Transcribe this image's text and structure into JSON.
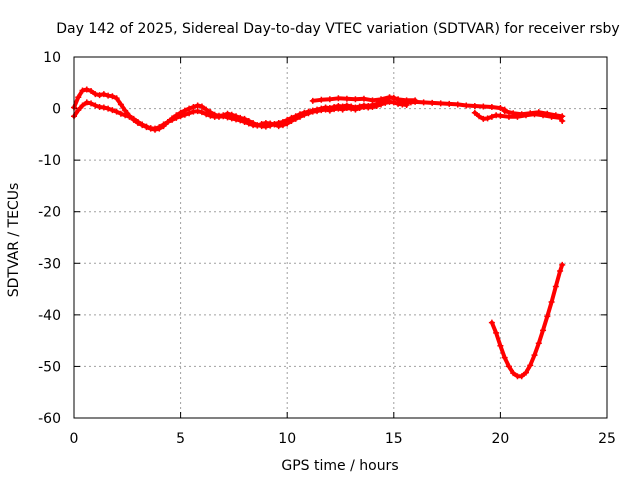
{
  "chart_data": {
    "type": "scatter",
    "title": "Day 142 of 2025, Sidereal Day-to-day VTEC variation (SDTVAR) for receiver rsby",
    "xlabel": "GPS time / hours",
    "ylabel": "SDTVAR / TECUs",
    "xlim": [
      0,
      25
    ],
    "ylim": [
      -60,
      10
    ],
    "xticks": [
      0,
      5,
      10,
      15,
      20,
      25
    ],
    "yticks": [
      10,
      0,
      -10,
      -20,
      -30,
      -40,
      -50,
      -60
    ],
    "grid": true,
    "marker": "plus",
    "series": [
      {
        "name": "main-upper",
        "color": "#ff0000",
        "points": [
          [
            0.0,
            0.2
          ],
          [
            0.2,
            2.2
          ],
          [
            0.4,
            3.5
          ],
          [
            0.6,
            3.7
          ],
          [
            0.8,
            3.4
          ],
          [
            1.0,
            2.8
          ],
          [
            1.2,
            2.6
          ],
          [
            1.4,
            2.8
          ],
          [
            1.6,
            2.5
          ],
          [
            1.8,
            2.4
          ],
          [
            2.0,
            2.0
          ],
          [
            2.2,
            0.8
          ],
          [
            2.4,
            -0.4
          ],
          [
            2.6,
            -1.4
          ],
          [
            2.8,
            -2.2
          ],
          [
            3.0,
            -2.8
          ],
          [
            3.2,
            -3.2
          ],
          [
            3.4,
            -3.6
          ],
          [
            3.6,
            -3.9
          ],
          [
            3.8,
            -4.1
          ],
          [
            4.0,
            -3.9
          ],
          [
            4.2,
            -3.4
          ],
          [
            4.4,
            -2.6
          ],
          [
            4.6,
            -1.9
          ],
          [
            4.8,
            -1.3
          ],
          [
            5.0,
            -0.8
          ],
          [
            5.2,
            -0.4
          ],
          [
            5.4,
            0.0
          ],
          [
            5.6,
            0.3
          ],
          [
            5.8,
            0.6
          ],
          [
            6.0,
            0.4
          ],
          [
            6.2,
            -0.2
          ],
          [
            6.4,
            -0.7
          ],
          [
            6.6,
            -1.2
          ],
          [
            6.8,
            -1.4
          ],
          [
            7.0,
            -1.3
          ],
          [
            7.2,
            -1.0
          ],
          [
            7.4,
            -1.2
          ],
          [
            7.6,
            -1.5
          ],
          [
            7.8,
            -1.8
          ],
          [
            8.0,
            -2.0
          ],
          [
            8.2,
            -2.4
          ],
          [
            8.4,
            -2.8
          ],
          [
            8.6,
            -3.2
          ],
          [
            8.8,
            -3.4
          ],
          [
            9.0,
            -3.5
          ],
          [
            9.2,
            -3.3
          ],
          [
            9.4,
            -3.0
          ],
          [
            9.6,
            -2.8
          ],
          [
            9.8,
            -2.6
          ],
          [
            10.0,
            -2.2
          ],
          [
            10.2,
            -1.8
          ],
          [
            10.4,
            -1.5
          ],
          [
            10.6,
            -1.1
          ],
          [
            10.8,
            -0.8
          ],
          [
            11.0,
            -0.6
          ],
          [
            11.2,
            -0.4
          ],
          [
            11.4,
            -0.2
          ],
          [
            11.6,
            0.0
          ],
          [
            11.8,
            0.2
          ],
          [
            12.0,
            0.1
          ],
          [
            12.2,
            0.3
          ],
          [
            12.4,
            0.5
          ],
          [
            12.6,
            0.4
          ],
          [
            12.8,
            0.6
          ],
          [
            13.0,
            0.4
          ],
          [
            13.2,
            0.2
          ],
          [
            13.4,
            0.4
          ],
          [
            13.6,
            0.6
          ],
          [
            13.8,
            0.5
          ],
          [
            14.0,
            0.7
          ],
          [
            14.2,
            0.9
          ],
          [
            14.4,
            1.3
          ],
          [
            14.6,
            1.7
          ],
          [
            14.8,
            2.1
          ],
          [
            15.0,
            2.1
          ],
          [
            15.2,
            1.7
          ],
          [
            15.4,
            1.4
          ],
          [
            15.6,
            1.2
          ],
          [
            15.8,
            1.2
          ],
          [
            16.0,
            1.3
          ],
          [
            16.4,
            1.2
          ],
          [
            16.8,
            1.1
          ],
          [
            17.2,
            1.0
          ],
          [
            17.6,
            0.9
          ],
          [
            18.0,
            0.8
          ],
          [
            18.4,
            0.6
          ],
          [
            18.8,
            0.5
          ],
          [
            19.2,
            0.4
          ],
          [
            19.6,
            0.3
          ],
          [
            20.0,
            0.1
          ],
          [
            20.2,
            -0.2
          ]
        ]
      },
      {
        "name": "main-lower",
        "color": "#ff0000",
        "points": [
          [
            0.0,
            -1.5
          ],
          [
            0.2,
            -0.3
          ],
          [
            0.4,
            0.6
          ],
          [
            0.6,
            1.2
          ],
          [
            0.8,
            1.0
          ],
          [
            1.0,
            0.6
          ],
          [
            1.2,
            0.3
          ],
          [
            1.4,
            0.2
          ],
          [
            1.6,
            0.0
          ],
          [
            1.8,
            -0.3
          ],
          [
            2.0,
            -0.6
          ],
          [
            2.2,
            -1.0
          ],
          [
            2.4,
            -1.3
          ],
          [
            2.6,
            -1.6
          ],
          [
            2.8,
            -2.0
          ],
          [
            3.0,
            -2.6
          ],
          [
            3.2,
            -3.1
          ],
          [
            3.4,
            -3.5
          ],
          [
            3.6,
            -3.8
          ],
          [
            3.8,
            -3.9
          ],
          [
            4.0,
            -3.6
          ],
          [
            4.2,
            -3.1
          ],
          [
            4.4,
            -2.6
          ],
          [
            4.6,
            -2.2
          ],
          [
            4.8,
            -1.8
          ],
          [
            5.0,
            -1.5
          ],
          [
            5.2,
            -1.2
          ],
          [
            5.4,
            -0.9
          ],
          [
            5.6,
            -0.6
          ],
          [
            5.8,
            -0.5
          ],
          [
            6.0,
            -0.7
          ],
          [
            6.2,
            -1.1
          ],
          [
            6.4,
            -1.4
          ],
          [
            6.6,
            -1.6
          ],
          [
            6.8,
            -1.6
          ],
          [
            7.0,
            -1.5
          ],
          [
            7.2,
            -1.7
          ],
          [
            7.4,
            -1.9
          ],
          [
            7.6,
            -2.1
          ],
          [
            7.8,
            -2.3
          ],
          [
            8.0,
            -2.6
          ],
          [
            8.2,
            -2.9
          ],
          [
            8.4,
            -3.2
          ],
          [
            8.6,
            -3.3
          ],
          [
            8.8,
            -3.0
          ],
          [
            9.0,
            -2.8
          ],
          [
            9.2,
            -2.9
          ],
          [
            9.4,
            -3.1
          ],
          [
            9.6,
            -3.4
          ],
          [
            9.8,
            -3.2
          ],
          [
            10.0,
            -2.9
          ],
          [
            10.2,
            -2.4
          ],
          [
            10.4,
            -2.0
          ],
          [
            10.6,
            -1.6
          ],
          [
            10.8,
            -1.2
          ],
          [
            11.0,
            -0.9
          ],
          [
            11.2,
            -0.6
          ],
          [
            11.4,
            -0.5
          ],
          [
            11.6,
            -0.3
          ],
          [
            11.8,
            -0.2
          ],
          [
            12.0,
            -0.4
          ],
          [
            12.2,
            -0.1
          ],
          [
            12.4,
            0.0
          ],
          [
            12.6,
            -0.2
          ],
          [
            12.8,
            0.1
          ],
          [
            13.0,
            0.0
          ],
          [
            13.2,
            -0.2
          ],
          [
            13.4,
            0.1
          ],
          [
            13.6,
            0.3
          ],
          [
            13.8,
            0.2
          ],
          [
            14.0,
            0.3
          ],
          [
            14.2,
            0.5
          ],
          [
            14.4,
            0.8
          ],
          [
            14.6,
            1.1
          ],
          [
            14.8,
            1.3
          ],
          [
            15.0,
            1.2
          ],
          [
            15.2,
            0.9
          ],
          [
            15.4,
            0.8
          ],
          [
            15.6,
            0.7
          ]
        ]
      },
      {
        "name": "segment-11-16",
        "color": "#ff0000",
        "points": [
          [
            11.2,
            1.5
          ],
          [
            11.6,
            1.7
          ],
          [
            12.0,
            1.8
          ],
          [
            12.4,
            2.0
          ],
          [
            12.8,
            1.9
          ],
          [
            13.2,
            1.8
          ],
          [
            13.6,
            1.9
          ],
          [
            14.0,
            1.6
          ],
          [
            14.4,
            1.8
          ],
          [
            14.8,
            2.2
          ],
          [
            15.2,
            1.8
          ],
          [
            15.6,
            1.6
          ],
          [
            16.0,
            1.6
          ]
        ]
      },
      {
        "name": "segment-19-23",
        "color": "#ff0000",
        "points": [
          [
            18.8,
            -0.8
          ],
          [
            19.0,
            -1.5
          ],
          [
            19.2,
            -2.0
          ],
          [
            19.4,
            -1.9
          ],
          [
            19.6,
            -1.6
          ],
          [
            19.8,
            -1.3
          ],
          [
            20.0,
            -1.4
          ],
          [
            20.4,
            -1.6
          ],
          [
            20.8,
            -1.6
          ],
          [
            21.2,
            -1.3
          ],
          [
            21.6,
            -1.1
          ],
          [
            22.0,
            -1.3
          ],
          [
            22.4,
            -1.6
          ],
          [
            22.8,
            -1.8
          ],
          [
            22.9,
            -2.4
          ]
        ]
      },
      {
        "name": "segment-20-23-b",
        "color": "#ff0000",
        "points": [
          [
            20.2,
            -0.5
          ],
          [
            20.6,
            -0.9
          ],
          [
            21.0,
            -1.1
          ],
          [
            21.4,
            -0.9
          ],
          [
            21.8,
            -0.7
          ],
          [
            22.2,
            -1.0
          ],
          [
            22.6,
            -1.3
          ],
          [
            22.9,
            -1.5
          ]
        ]
      },
      {
        "name": "dip-curve",
        "color": "#ff0000",
        "points": [
          [
            19.6,
            -41.5
          ],
          [
            19.8,
            -43.5
          ],
          [
            20.0,
            -46.0
          ],
          [
            20.2,
            -48.3
          ],
          [
            20.4,
            -50.0
          ],
          [
            20.6,
            -51.3
          ],
          [
            20.8,
            -51.9
          ],
          [
            21.0,
            -51.9
          ],
          [
            21.2,
            -51.2
          ],
          [
            21.4,
            -49.8
          ],
          [
            21.6,
            -47.8
          ],
          [
            21.8,
            -45.5
          ],
          [
            22.0,
            -43.0
          ],
          [
            22.2,
            -40.3
          ],
          [
            22.4,
            -37.5
          ],
          [
            22.6,
            -34.5
          ],
          [
            22.8,
            -31.5
          ],
          [
            22.9,
            -30.3
          ]
        ]
      }
    ]
  }
}
